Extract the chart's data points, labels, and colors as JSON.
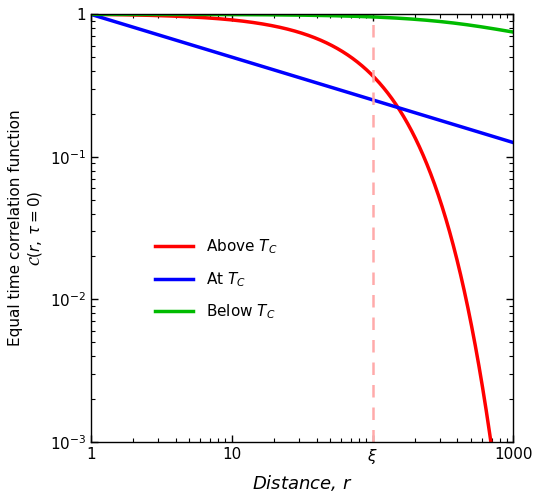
{
  "xlim": [
    1,
    1000
  ],
  "ylim": [
    0.001,
    1
  ],
  "xi": 100,
  "above_color": "#ff0000",
  "at_color": "#0000ff",
  "below_color": "#00bb00",
  "dashed_color": "#ffaaaa",
  "xlabel": "Distance, $r$",
  "legend_labels": [
    "Above $T_C$",
    "At $T_C$",
    "Below $T_C$"
  ],
  "background_color": "#ffffff",
  "linewidth": 2.5,
  "eta_at": 0.3,
  "below_saturation": 0.65,
  "xi_below": 800
}
